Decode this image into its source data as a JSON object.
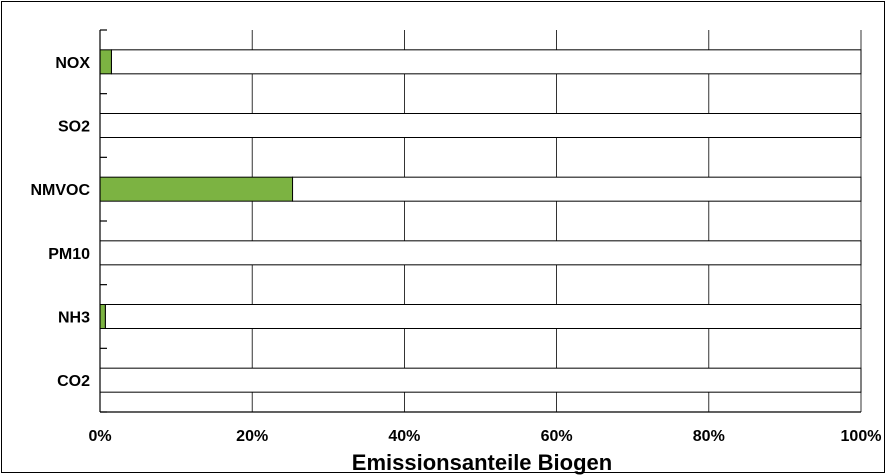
{
  "chart_data": {
    "type": "bar",
    "orientation": "horizontal",
    "stacked_to_100": true,
    "categories": [
      "NOX",
      "SO2",
      "NMVOC",
      "PM10",
      "NH3",
      "CO2"
    ],
    "series": [
      {
        "values": [
          1.5,
          0,
          25.3,
          0,
          0.7,
          0
        ]
      }
    ],
    "remainder_values": [
      98.5,
      100,
      74.7,
      100,
      99.3,
      100
    ],
    "xlim": [
      0,
      100
    ],
    "x_ticks": [
      "0%",
      "20%",
      "40%",
      "60%",
      "80%",
      "100%"
    ],
    "xlabel": "Emissionsanteile Biogen",
    "ylabel": "",
    "title": "",
    "grid": "vertical",
    "legend": "none",
    "colors": {
      "highlight": "#7CB342",
      "remainder": "#ffffff",
      "stroke": "#000000",
      "grid": "#000000"
    }
  }
}
